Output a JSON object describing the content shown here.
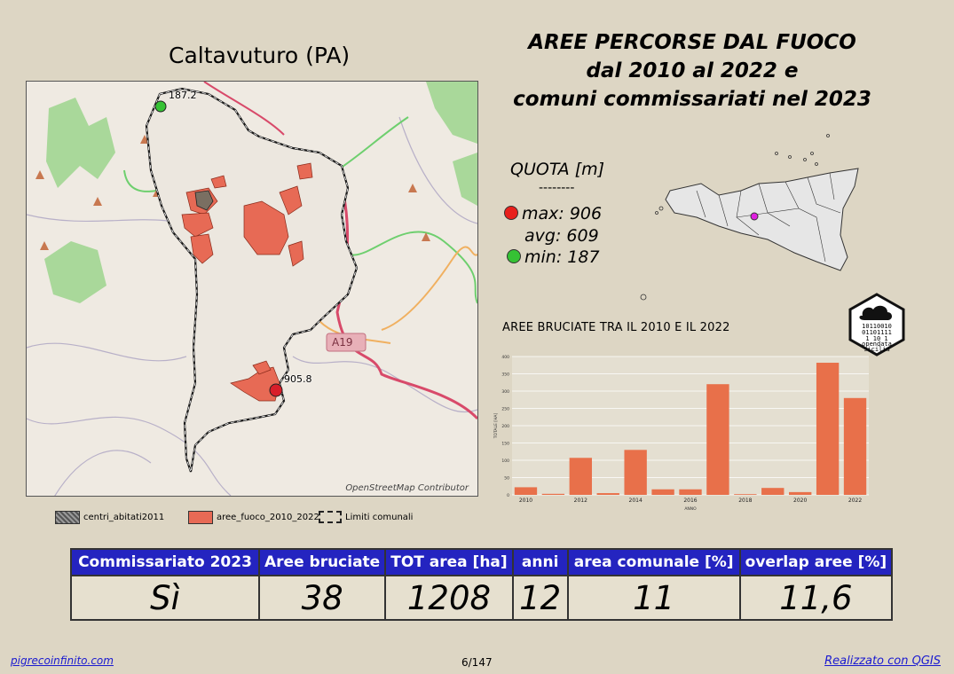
{
  "comune": "Caltavuturo (PA)",
  "title": {
    "line1": "AREE PERCORSE DAL FUOCO",
    "line2": "dal 2010 al 2022 e",
    "line3": "comuni commissariati nel 2023"
  },
  "map": {
    "min_label": "187.2",
    "max_label": "905.8",
    "road_label": "A19",
    "attribution": "OpenStreetMap Contributor"
  },
  "legend": {
    "item1": "centri_abitati2011",
    "item2": "aree_fuoco_2010_2022",
    "item3": "Limiti comunali"
  },
  "quota": {
    "title": "QUOTA [m]",
    "separator": "--------",
    "max": "max: 906",
    "avg": "avg: 609",
    "min": "min: 187",
    "max_color": "#e8201c",
    "min_color": "#35c234"
  },
  "logo": {
    "bits1": "10110010",
    "bits2": "01101111",
    "bits3": "1  10 1",
    "line1": "opendata",
    "line2": "sicilia"
  },
  "chart_title": "AREE BRUCIATE TRA IL 2010 E IL 2022",
  "chart_data": {
    "type": "bar",
    "categories": [
      "2010",
      "2011",
      "2012",
      "2013",
      "2014",
      "2015",
      "2016",
      "2017",
      "2018",
      "2019",
      "2020",
      "2021",
      "2022"
    ],
    "values": [
      22,
      3,
      107,
      5,
      130,
      16,
      16,
      320,
      2,
      20,
      8,
      382,
      280
    ],
    "ylim": [
      0,
      400
    ],
    "yticks": [
      "0",
      "50",
      "100",
      "150",
      "200",
      "250",
      "300",
      "350",
      "400"
    ],
    "xticks": [
      "2010",
      "2012",
      "2014",
      "2016",
      "2018",
      "2020",
      "2022"
    ],
    "xlabel": "ANNO",
    "ylabel": "TOTALE [HA]",
    "bar_color": "#e8704a"
  },
  "table": {
    "headers": [
      "Commissariato 2023",
      "Aree bruciate",
      "TOT area [ha]",
      "anni",
      "area comunale [%]",
      "overlap aree [%]"
    ],
    "values": [
      "Sì",
      "38",
      "1208",
      "12",
      "11",
      "11,6"
    ]
  },
  "footer": {
    "left": "pigrecoinfinito.com",
    "center": "6/147",
    "right": "Realizzato con QGIS"
  }
}
